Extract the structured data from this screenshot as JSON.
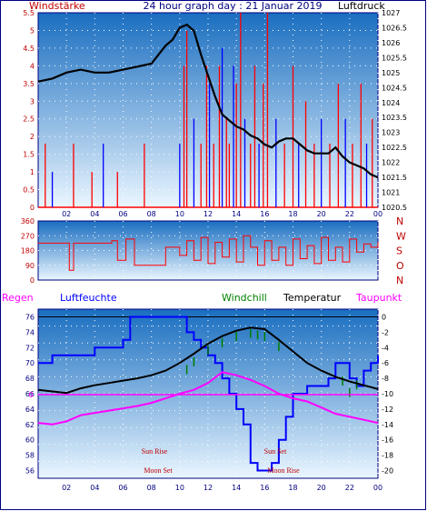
{
  "header": {
    "left_label": "Windstärke",
    "title": "24 hour graph day : 21 Januar 2019",
    "right_label": "Luftdruck"
  },
  "colors": {
    "frame": "#000080",
    "panel_top": "#1a6ec0",
    "panel_bottom": "#e6f4ff",
    "wind": "#ff0000",
    "wind_gust_blue": "#0000ff",
    "pressure": "#000000",
    "direction": "#ff0000",
    "temperature": "#000000",
    "windchill": "#008000",
    "humidity": "#0000ff",
    "dewpoint": "#ff00ff",
    "axis_text_blue": "#000080",
    "axis_text_red": "#c00000"
  },
  "chart_data": [
    {
      "type": "line",
      "title": "24 hour graph day : 21 Januar 2019",
      "xlabel": "",
      "x_ticks": [
        "02",
        "04",
        "06",
        "08",
        "10",
        "12",
        "14",
        "16",
        "18",
        "20",
        "22",
        "00"
      ],
      "y_left_label": "Windstärke",
      "y_left_ticks": [
        "0",
        "0.5",
        "1",
        "1.5",
        "2",
        "2.5",
        "3",
        "3.5",
        "4",
        "4.5",
        "5",
        "5.5"
      ],
      "y_left_range": [
        0,
        5.5
      ],
      "y_right_label": "Luftdruck",
      "y_right_ticks": [
        "1020.5",
        "1021",
        "1021.5",
        "1022",
        "1022.5",
        "1023",
        "1023.5",
        "1024",
        "1024.5",
        "1025",
        "1025.5",
        "1026",
        "1026.5",
        "1027"
      ],
      "y_right_range": [
        1020.5,
        1027
      ],
      "series": [
        {
          "name": "Luftdruck",
          "axis": "right",
          "x": [
            0.0,
            1.0,
            2.0,
            3.0,
            4.0,
            5.0,
            6.0,
            7.0,
            8.0,
            8.5,
            9.0,
            9.5,
            10.0,
            10.5,
            11.0,
            11.5,
            12.0,
            12.5,
            13.0,
            13.5,
            14.0,
            14.5,
            15.0,
            15.5,
            16.0,
            16.5,
            17.0,
            17.5,
            18.0,
            18.5,
            19.0,
            19.5,
            20.0,
            20.5,
            21.0,
            21.5,
            22.0,
            22.5,
            23.0,
            23.5,
            24.0
          ],
          "y": [
            1024.7,
            1024.8,
            1025.0,
            1025.1,
            1025.0,
            1025.0,
            1025.1,
            1025.2,
            1025.3,
            1025.6,
            1025.9,
            1026.1,
            1026.5,
            1026.6,
            1026.4,
            1025.6,
            1024.9,
            1024.2,
            1023.6,
            1023.4,
            1023.2,
            1023.1,
            1022.9,
            1022.8,
            1022.6,
            1022.5,
            1022.7,
            1022.8,
            1022.8,
            1022.6,
            1022.4,
            1022.3,
            1022.3,
            1022.3,
            1022.5,
            1022.2,
            1022.0,
            1021.9,
            1021.8,
            1021.6,
            1021.5
          ]
        },
        {
          "name": "Windstärke",
          "axis": "left",
          "x": [
            0.5,
            1.0,
            2.5,
            3.8,
            4.6,
            5.6,
            7.5,
            10.0,
            10.3,
            10.5,
            11.0,
            11.5,
            11.9,
            12.1,
            12.4,
            12.8,
            13.0,
            13.3,
            13.5,
            13.8,
            14.0,
            14.3,
            14.6,
            15.0,
            15.3,
            15.6,
            15.9,
            16.2,
            16.8,
            17.4,
            18.0,
            18.4,
            18.9,
            19.5,
            20.0,
            20.6,
            21.2,
            21.7,
            22.2,
            22.8,
            23.2,
            23.6
          ],
          "y": [
            1.8,
            1.0,
            1.8,
            1.0,
            1.8,
            1.0,
            1.8,
            1.8,
            4.0,
            5.0,
            2.5,
            1.8,
            4.0,
            3.5,
            1.8,
            4.0,
            4.5,
            2.5,
            1.8,
            4.0,
            3.5,
            5.5,
            2.5,
            1.8,
            4.0,
            1.8,
            3.5,
            5.5,
            2.5,
            1.8,
            4.0,
            1.8,
            3.0,
            1.8,
            2.5,
            1.8,
            3.5,
            2.5,
            1.8,
            3.5,
            1.8,
            2.5
          ]
        }
      ]
    },
    {
      "type": "line",
      "title": "",
      "y_left_ticks": [
        "360",
        "270",
        "180",
        "90",
        "0"
      ],
      "y_left_range": [
        0,
        360
      ],
      "y_right_ticks": [
        "N",
        "W",
        "S",
        "O",
        "N"
      ],
      "series": [
        {
          "name": "",
          "x": [
            0.0,
            1.5,
            2.2,
            2.5,
            3.0,
            4.0,
            5.0,
            5.2,
            5.6,
            6.2,
            6.8,
            7.0,
            8.0,
            9.0,
            10.0,
            10.5,
            11.0,
            11.5,
            12.0,
            12.5,
            13.0,
            13.5,
            14.0,
            14.5,
            15.0,
            15.5,
            16.0,
            16.5,
            17.0,
            17.5,
            18.0,
            18.5,
            19.0,
            19.5,
            20.0,
            20.5,
            21.0,
            21.5,
            22.0,
            22.5,
            23.0,
            23.5,
            24.0
          ],
          "y": [
            225,
            225,
            60,
            225,
            225,
            225,
            225,
            240,
            120,
            250,
            90,
            90,
            90,
            200,
            150,
            240,
            120,
            260,
            100,
            230,
            140,
            250,
            110,
            270,
            200,
            90,
            240,
            120,
            200,
            90,
            250,
            130,
            210,
            100,
            260,
            120,
            200,
            110,
            250,
            170,
            220,
            200,
            230
          ]
        }
      ]
    },
    {
      "type": "line",
      "title": "",
      "legend": [
        "Regen",
        "Luftfeuchte",
        "Windchill",
        "Temperatur",
        "Taupunkt"
      ],
      "y_left_ticks": [
        "56",
        "58",
        "60",
        "62",
        "64",
        "66",
        "68",
        "70",
        "72",
        "74",
        "76"
      ],
      "y_left_range": [
        55,
        77
      ],
      "y_right_ticks": [
        "0",
        "-2",
        "-4",
        "-6",
        "-8",
        "-10",
        "-12",
        "-14",
        "-16",
        "-18",
        "-20"
      ],
      "y_right_range": [
        -21,
        1
      ],
      "rain_baseline_label": "0",
      "annotations": [
        "Sun Rise",
        "Moon Set",
        "Sun Set",
        "Moon Rise"
      ],
      "series": [
        {
          "name": "Luftfeuchte",
          "axis": "left",
          "x": [
            0.0,
            1.0,
            2.0,
            3.0,
            4.0,
            5.0,
            6.0,
            6.5,
            7.0,
            8.0,
            9.0,
            10.0,
            10.5,
            11.0,
            11.5,
            12.0,
            12.5,
            13.0,
            13.5,
            14.0,
            14.5,
            15.0,
            15.5,
            16.0,
            16.5,
            17.0,
            17.5,
            18.0,
            19.0,
            20.0,
            20.5,
            21.0,
            21.5,
            22.0,
            22.5,
            23.0,
            23.5,
            24.0
          ],
          "y": [
            70,
            71,
            71,
            71,
            72,
            72,
            73,
            76,
            76,
            76,
            76,
            76,
            74,
            73,
            72,
            71,
            70,
            68,
            66,
            64,
            62,
            57,
            56,
            56,
            57,
            60,
            63,
            66,
            67,
            67,
            68,
            70,
            70,
            68,
            67,
            69,
            70,
            71
          ]
        },
        {
          "name": "Temperatur",
          "axis": "right",
          "x": [
            0.0,
            1.0,
            2.0,
            3.0,
            4.0,
            5.0,
            6.0,
            7.0,
            8.0,
            9.0,
            10.0,
            11.0,
            12.0,
            13.0,
            14.0,
            15.0,
            16.0,
            17.0,
            18.0,
            19.0,
            20.0,
            21.0,
            22.0,
            23.0,
            24.0
          ],
          "y": [
            -9.5,
            -9.7,
            -9.9,
            -9.3,
            -8.9,
            -8.6,
            -8.3,
            -8.0,
            -7.6,
            -7.0,
            -6.0,
            -4.8,
            -3.5,
            -2.5,
            -1.8,
            -1.4,
            -1.6,
            -3.0,
            -4.5,
            -6.0,
            -7.0,
            -7.8,
            -8.4,
            -8.9,
            -9.4
          ]
        },
        {
          "name": "Windchill",
          "axis": "right",
          "x": [
            10.5,
            11.0,
            12.0,
            13.0,
            14.0,
            15.0,
            15.5,
            16.0,
            17.0,
            21.5,
            22.0,
            22.5
          ],
          "y": [
            -6.5,
            -5.5,
            -4.0,
            -3.0,
            -2.2,
            -1.8,
            -2.0,
            -2.2,
            -3.5,
            -8.0,
            -9.5,
            -8.5
          ]
        },
        {
          "name": "Taupunkt",
          "axis": "right",
          "x": [
            0.0,
            1.0,
            2.0,
            3.0,
            4.0,
            5.0,
            6.0,
            7.0,
            8.0,
            9.0,
            10.0,
            11.0,
            12.0,
            13.0,
            14.0,
            15.0,
            16.0,
            17.0,
            18.0,
            19.0,
            20.0,
            21.0,
            22.0,
            23.0,
            24.0
          ],
          "y": [
            -13.8,
            -14.0,
            -13.6,
            -12.8,
            -12.5,
            -12.2,
            -11.9,
            -11.6,
            -11.2,
            -10.6,
            -10.0,
            -9.5,
            -8.6,
            -7.2,
            -7.6,
            -8.2,
            -9.0,
            -10.0,
            -10.6,
            -11.0,
            -11.8,
            -12.6,
            -13.0,
            -13.4,
            -13.8
          ]
        },
        {
          "name": "Regen",
          "axis": "rain",
          "x": [
            0,
            24
          ],
          "y": [
            0,
            0
          ]
        }
      ]
    }
  ]
}
